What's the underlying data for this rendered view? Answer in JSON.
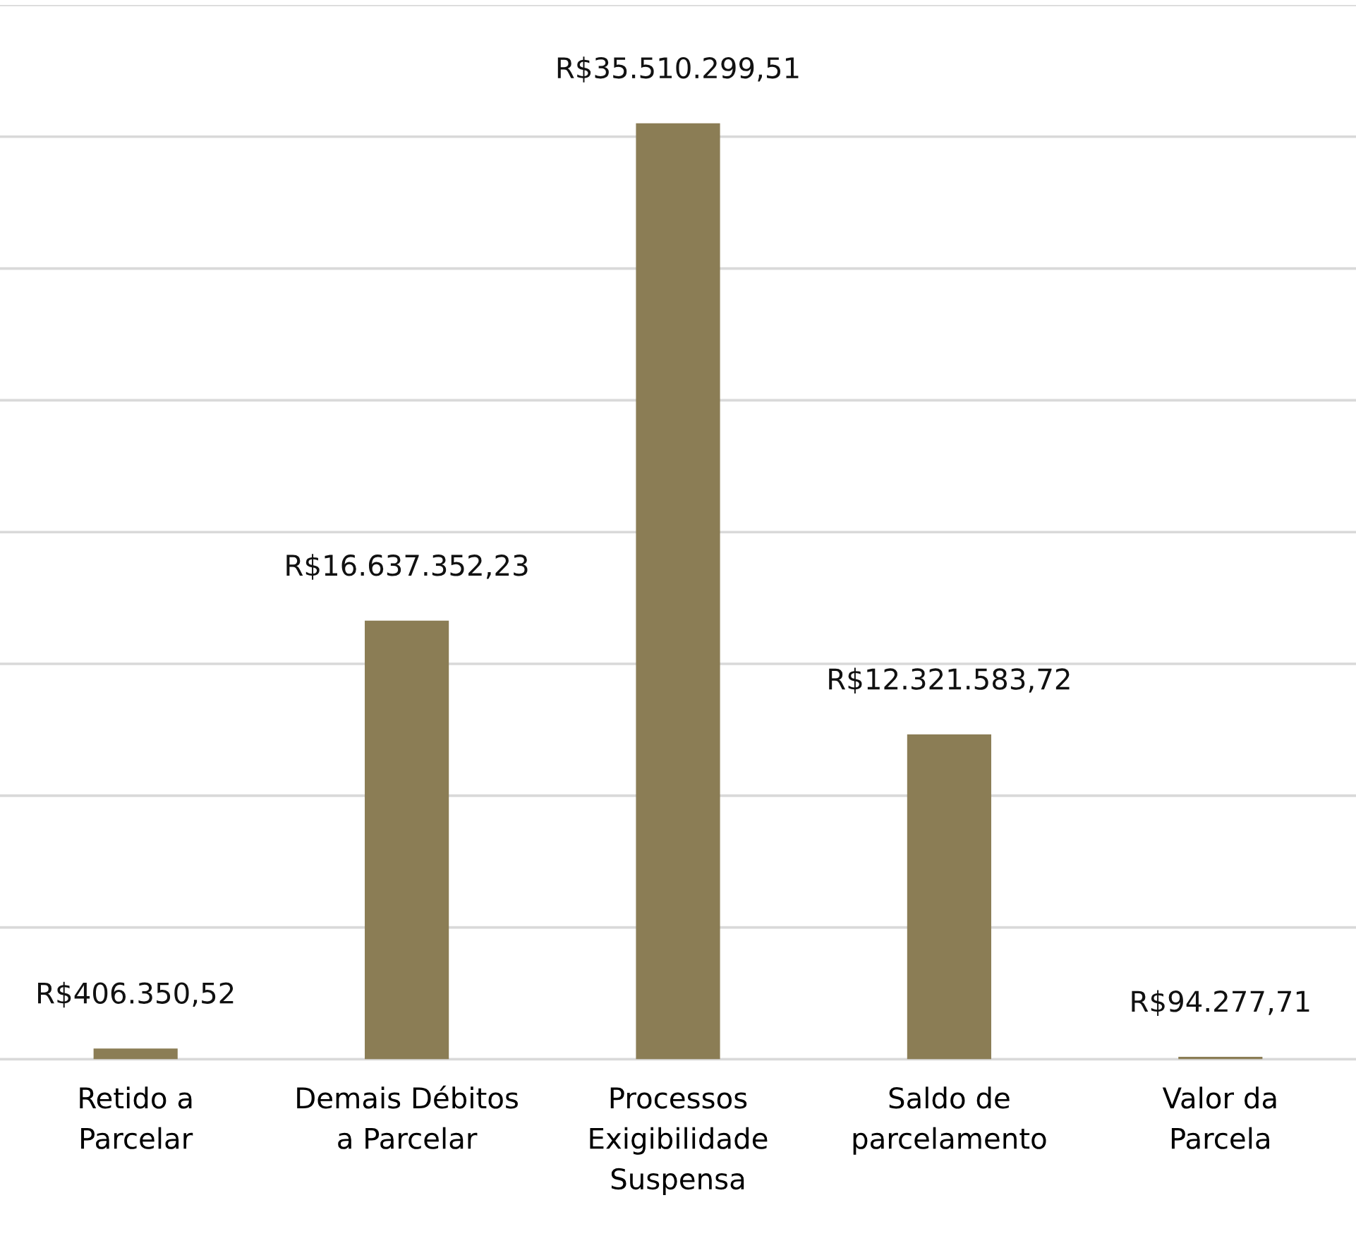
{
  "chart_data": {
    "type": "bar",
    "categories": [
      "Retido a\nParcelar",
      "Demais Débitos\na Parcelar",
      "Processos\nExigibilidade\nSuspensa",
      "Saldo de\nparcelamento",
      "Valor da\nParcela"
    ],
    "values": [
      406350.52,
      16637352.23,
      35510299.51,
      12321583.72,
      94277.71
    ],
    "value_labels": [
      "R$406.350,52",
      "R$16.637.352,23",
      "R$35.510.299,51",
      "R$12.321.583,72",
      "R$94.277,71"
    ],
    "color": "#8b7d55",
    "ylim": [
      0,
      40000000
    ],
    "yticks": [
      {
        "value": 0,
        "label": null
      },
      {
        "value": 5000000,
        "label": null
      },
      {
        "value": 10000000,
        "label": null
      },
      {
        "value": 15000000,
        "label": null
      },
      {
        "value": 20000000,
        "label": null
      },
      {
        "value": 25000000,
        "label": null
      },
      {
        "value": 30000000,
        "label": null
      },
      {
        "value": 35000000,
        "label": null
      },
      {
        "value": 40000000,
        "label": null
      }
    ],
    "tick_labels": "x",
    "grid": "y"
  }
}
